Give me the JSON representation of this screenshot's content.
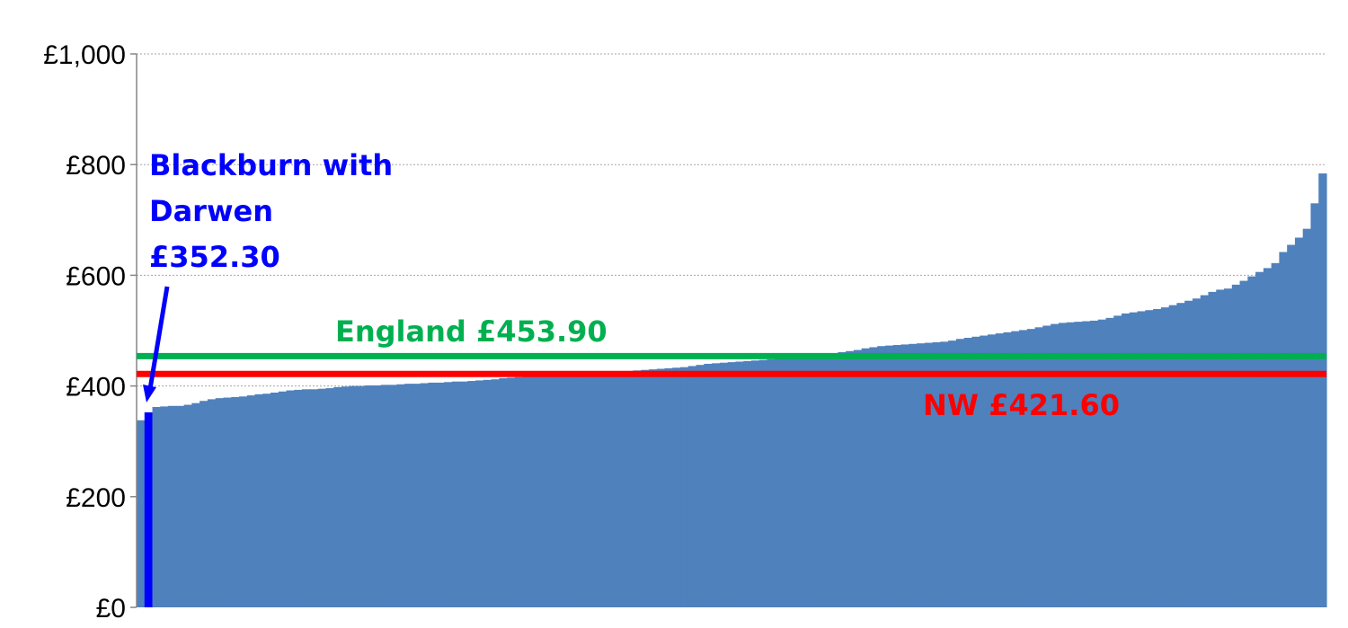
{
  "chart_data": {
    "type": "bar",
    "title": "",
    "xlabel": "",
    "ylabel": "",
    "ylim": [
      0,
      1000
    ],
    "y_ticks": [
      {
        "value": 0,
        "label": "£0"
      },
      {
        "value": 200,
        "label": "£200"
      },
      {
        "value": 400,
        "label": "£400"
      },
      {
        "value": 600,
        "label": "£600"
      },
      {
        "value": 800,
        "label": "£800"
      },
      {
        "value": 1000,
        "label": "£1,000"
      }
    ],
    "grid": true,
    "bar_color": "#4F81BD",
    "highlight_index": 1,
    "highlight_color": "#0000FF",
    "values": [
      338,
      352.3,
      362,
      363,
      364,
      364,
      366,
      369,
      373,
      376,
      378,
      379,
      380,
      381,
      383,
      385,
      386,
      388,
      390,
      392,
      393,
      394,
      394,
      395,
      396,
      398,
      399,
      400,
      400,
      401,
      401,
      402,
      402,
      403,
      404,
      404,
      405,
      406,
      406,
      407,
      408,
      408,
      409,
      410,
      411,
      412,
      414,
      415,
      416,
      418,
      418,
      419,
      420,
      421,
      421,
      422,
      423,
      424,
      424,
      425,
      426,
      427,
      427,
      428,
      429,
      430,
      431,
      432,
      433,
      434,
      436,
      438,
      440,
      441,
      442,
      443,
      444,
      445,
      446,
      447,
      448,
      449,
      450,
      451,
      452,
      453,
      455,
      457,
      459,
      461,
      463,
      465,
      468,
      470,
      472,
      473,
      474,
      475,
      476,
      477,
      478,
      479,
      480,
      482,
      485,
      487,
      489,
      491,
      493,
      495,
      497,
      499,
      501,
      503,
      506,
      509,
      512,
      514,
      515,
      516,
      517,
      518,
      520,
      523,
      527,
      531,
      533,
      535,
      537,
      539,
      542,
      546,
      550,
      554,
      558,
      564,
      570,
      574,
      576,
      583,
      590,
      598,
      606,
      613,
      622,
      642,
      655,
      668,
      684,
      730,
      784
    ],
    "reference_lines": [
      {
        "name": "England",
        "value": 453.9,
        "label": "England £453.90",
        "color": "#00B050"
      },
      {
        "name": "NW",
        "value": 421.6,
        "label": "NW £421.60",
        "color": "#FF0000"
      }
    ],
    "annotation": {
      "lines": [
        "Blackburn with",
        "Darwen",
        "£352.30"
      ],
      "value": 352.3,
      "color": "#0000FF"
    }
  }
}
